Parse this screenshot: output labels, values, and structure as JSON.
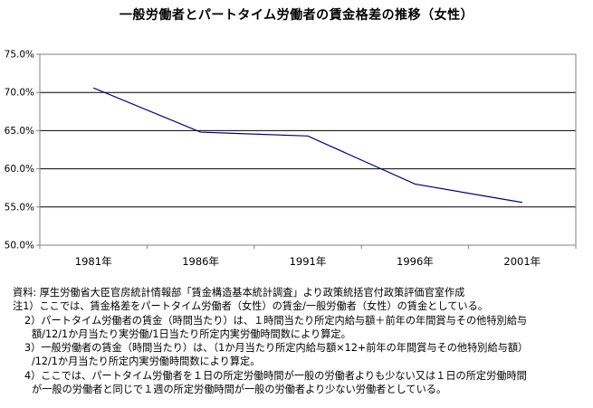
{
  "chart_data": {
    "type": "line",
    "title": "一般労働者とパートタイム労働者の賃金格差の推移（女性）",
    "categories": [
      "1981年",
      "1986年",
      "1991年",
      "1996年",
      "2001年"
    ],
    "series": [
      {
        "values": [
          70.6,
          64.8,
          64.3,
          58.0,
          55.6
        ]
      }
    ],
    "ylim": [
      50,
      75
    ],
    "yticks": [
      "50.0%",
      "55.0%",
      "60.0%",
      "65.0%",
      "70.0%",
      "75.0%"
    ],
    "ytick_values": [
      50,
      55,
      60,
      65,
      70,
      75
    ],
    "grid": true,
    "xlabel": "",
    "ylabel": "",
    "line_color": "#000080"
  },
  "notes": {
    "source": "資料: 厚生労働省大臣官房統計情報部「賃金構造基本統計調査」より政策統括官付政策評価官室作成",
    "note1": "注1）ここでは、賃金格差をパートタイム労働者（女性）の賃金/一般労働者（女性）の賃金としている。",
    "note2a": "2）パートタイム労働者の賃金（時間当たり）は、１時間当たり所定内給与額＋前年の年間賞与その他特別給与",
    "note2b": "額/12/1か月当たり実労働/1日当たり所定内実労働時間数により算定。",
    "note3a": "3）一般労働者の賃金（時間当たり）は、（1か月当たり所定内給与額×12+前年の年間賞与その他特別給与額）",
    "note3b": "/12/1か月当たり所定内実労働時間数により算定。",
    "note4a": "4）ここでは、パートタイム労働者を１日の所定労働時間が一般の労働者よりも少ない又は１日の所定労働時間",
    "note4b": "が一般の労働者と同じで１週の所定労働時間が一般の労働者より少ない労働者としている。"
  }
}
